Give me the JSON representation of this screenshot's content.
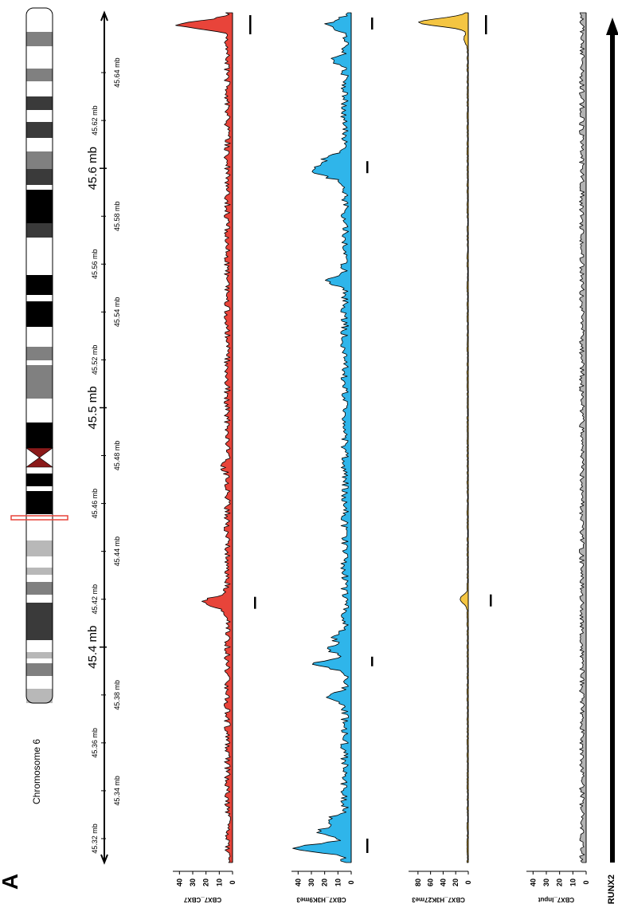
{
  "figure": {
    "panel_label": "A",
    "chromosome_label": "Chromosome 6",
    "gene_label": "RUNX2"
  },
  "colors": {
    "CBX7_CBX7": "#e8443a",
    "CBX7_H3K9me3": "#2fb5ea",
    "CBX7_H3K27me3": "#f4c542",
    "CBX7_Input": "#b3b3b3",
    "ideogram_highlight": "#e8443a",
    "centromere": "#8b1a1a"
  },
  "chart_data": {
    "type": "area",
    "orientation": "genome axis runs bottom to top; signal extends to the left",
    "x_range_mb": [
      45.31,
      45.665
    ],
    "major_ticks": [
      "45.4 mb",
      "45.5 mb",
      "45.6 mb"
    ],
    "minor_ticks": [
      "45.32 mb",
      "45.34 mb",
      "45.36 mb",
      "45.38 mb",
      "45.42 mb",
      "45.44 mb",
      "45.46 mb",
      "45.48 mb",
      "45.52 mb",
      "45.54 mb",
      "45.56 mb",
      "45.58 mb",
      "45.62 mb",
      "45.64 mb"
    ],
    "tracks": [
      {
        "name": "CBX7_CBX7",
        "ticks": [
          "0",
          "10",
          "20",
          "30",
          "40"
        ],
        "ylim": [
          0,
          45
        ],
        "peaks": [
          {
            "x": 45.66,
            "y": 38
          },
          {
            "x": 45.418,
            "y": 12
          },
          {
            "x": 45.42,
            "y": 10
          },
          {
            "x": 45.475,
            "y": 3
          }
        ],
        "called_regions": [
          [
            45.656,
            45.664
          ],
          [
            45.416,
            45.421
          ]
        ]
      },
      {
        "name": "CBX7_H3K9me3",
        "ticks": [
          "0",
          "10",
          "20",
          "30",
          "40"
        ],
        "ylim": [
          0,
          45
        ],
        "peaks": [
          {
            "x": 45.316,
            "y": 38
          },
          {
            "x": 45.323,
            "y": 20
          },
          {
            "x": 45.328,
            "y": 12
          },
          {
            "x": 45.379,
            "y": 12
          },
          {
            "x": 45.393,
            "y": 22
          },
          {
            "x": 45.399,
            "y": 12
          },
          {
            "x": 45.404,
            "y": 9
          },
          {
            "x": 45.553,
            "y": 12
          },
          {
            "x": 45.597,
            "y": 13
          },
          {
            "x": 45.6,
            "y": 22
          },
          {
            "x": 45.604,
            "y": 15
          },
          {
            "x": 45.645,
            "y": 9
          },
          {
            "x": 45.66,
            "y": 13
          }
        ],
        "called_regions": [
          [
            45.314,
            45.32
          ],
          [
            45.392,
            45.396
          ],
          [
            45.598,
            45.603
          ],
          [
            45.658,
            45.663
          ]
        ]
      },
      {
        "name": "CBX7_H3K27me3",
        "ticks": [
          "0",
          "20",
          "40",
          "60",
          "80"
        ],
        "ylim": [
          0,
          95
        ],
        "peaks": [
          {
            "x": 45.661,
            "y": 78
          },
          {
            "x": 45.42,
            "y": 12
          },
          {
            "x": 45.654,
            "y": 6
          }
        ],
        "called_regions": [
          [
            45.656,
            45.664
          ],
          [
            45.417,
            45.422
          ]
        ]
      },
      {
        "name": "CBX7_Input",
        "ticks": [
          "0",
          "10",
          "20",
          "30",
          "40"
        ],
        "ylim": [
          0,
          45
        ],
        "peaks": [],
        "called_regions": []
      }
    ]
  }
}
